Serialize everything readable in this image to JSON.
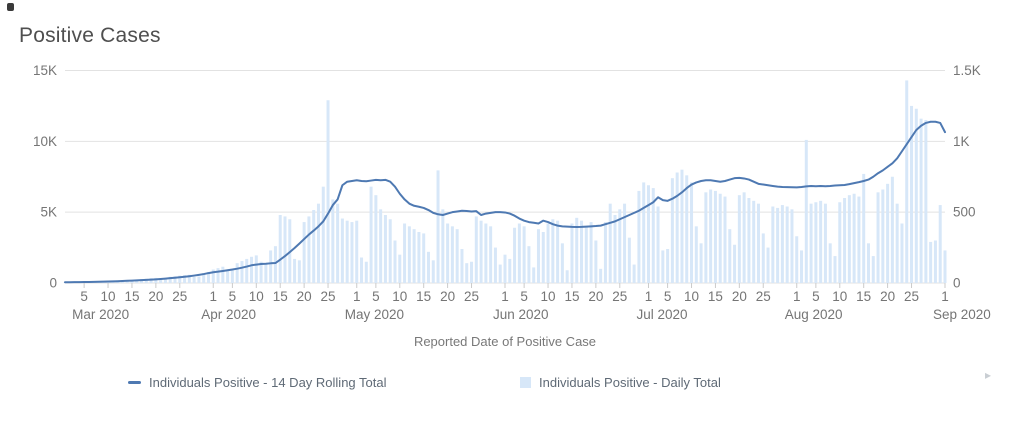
{
  "title": "Positive Cases",
  "x_axis_title": "Reported Date of Positive Case",
  "legend": {
    "items": [
      {
        "label": "Individuals Positive - 14 Day Rolling Total",
        "marker": "line-dash"
      },
      {
        "label": "Individuals Positive - Daily Total",
        "marker": "square"
      }
    ]
  },
  "icons": {
    "expand_marker": "▸"
  },
  "colors": {
    "line": "#4e79b2",
    "bar": "#d7e7f8",
    "grid": "#e2e2e2",
    "tick": "#cbcbcb",
    "axis_text": "#757575",
    "title_text": "#4f4f4f",
    "legend_text": "#5f6a76"
  },
  "chart_data": {
    "type": "line+bar",
    "title": "Positive Cases",
    "xlabel": "Reported Date of Positive Case",
    "x_start_date": "2020-03-01",
    "x_end_date": "2020-09-01",
    "x_interval": "day",
    "grid": true,
    "legend_position": "bottom",
    "axes": {
      "left": {
        "max": 15000,
        "ticks": [
          {
            "v": 0,
            "label": "0"
          },
          {
            "v": 5000,
            "label": "5K"
          },
          {
            "v": 10000,
            "label": "10K"
          },
          {
            "v": 15000,
            "label": "15K"
          }
        ]
      },
      "right": {
        "max": 1500,
        "ticks": [
          {
            "v": 0,
            "label": "0"
          },
          {
            "v": 500,
            "label": "500"
          },
          {
            "v": 1000,
            "label": "1K"
          },
          {
            "v": 1500,
            "label": "1.5K"
          }
        ]
      }
    },
    "months": [
      {
        "label": "Mar 2020",
        "ticks": [
          {
            "i": 4,
            "t": "5"
          },
          {
            "i": 9,
            "t": "10"
          },
          {
            "i": 14,
            "t": "15"
          },
          {
            "i": 19,
            "t": "20"
          },
          {
            "i": 24,
            "t": "25"
          }
        ]
      },
      {
        "label": "Apr 2020",
        "ticks": [
          {
            "i": 31,
            "t": "1"
          },
          {
            "i": 35,
            "t": "5"
          },
          {
            "i": 40,
            "t": "10"
          },
          {
            "i": 45,
            "t": "15"
          },
          {
            "i": 50,
            "t": "20"
          },
          {
            "i": 55,
            "t": "25"
          }
        ]
      },
      {
        "label": "May 2020",
        "ticks": [
          {
            "i": 61,
            "t": "1"
          },
          {
            "i": 65,
            "t": "5"
          },
          {
            "i": 70,
            "t": "10"
          },
          {
            "i": 75,
            "t": "15"
          },
          {
            "i": 80,
            "t": "20"
          },
          {
            "i": 85,
            "t": "25"
          }
        ]
      },
      {
        "label": "Jun 2020",
        "ticks": [
          {
            "i": 92,
            "t": "1"
          },
          {
            "i": 96,
            "t": "5"
          },
          {
            "i": 101,
            "t": "10"
          },
          {
            "i": 106,
            "t": "15"
          },
          {
            "i": 111,
            "t": "20"
          },
          {
            "i": 116,
            "t": "25"
          }
        ]
      },
      {
        "label": "Jul 2020",
        "ticks": [
          {
            "i": 122,
            "t": "1"
          },
          {
            "i": 126,
            "t": "5"
          },
          {
            "i": 131,
            "t": "10"
          },
          {
            "i": 136,
            "t": "15"
          },
          {
            "i": 141,
            "t": "20"
          },
          {
            "i": 146,
            "t": "25"
          }
        ]
      },
      {
        "label": "Aug 2020",
        "ticks": [
          {
            "i": 153,
            "t": "1"
          },
          {
            "i": 157,
            "t": "5"
          },
          {
            "i": 162,
            "t": "10"
          },
          {
            "i": 167,
            "t": "15"
          },
          {
            "i": 172,
            "t": "20"
          },
          {
            "i": 177,
            "t": "25"
          }
        ]
      },
      {
        "label": "Sep 2020",
        "ticks": [
          {
            "i": 184,
            "t": "1"
          }
        ]
      }
    ],
    "series": [
      {
        "name": "Individuals Positive - 14 Day Rolling Total",
        "type": "line",
        "axis": "left",
        "color": "#4e79b2",
        "values": [
          50,
          55,
          60,
          65,
          70,
          75,
          80,
          85,
          95,
          105,
          115,
          125,
          140,
          155,
          170,
          185,
          200,
          220,
          240,
          260,
          285,
          310,
          340,
          370,
          405,
          440,
          480,
          525,
          575,
          630,
          700,
          760,
          800,
          850,
          900,
          950,
          1010,
          1080,
          1160,
          1250,
          1300,
          1340,
          1360,
          1390,
          1410,
          1650,
          1900,
          2180,
          2470,
          2780,
          3100,
          3420,
          3700,
          4000,
          4350,
          4900,
          5500,
          5900,
          6900,
          7150,
          7200,
          7250,
          7200,
          7180,
          7230,
          7280,
          7250,
          7280,
          7150,
          6800,
          6300,
          5900,
          5600,
          5450,
          5380,
          5300,
          5150,
          4950,
          4850,
          4800,
          4900,
          5000,
          5050,
          5100,
          5080,
          5050,
          5070,
          4800,
          4900,
          4950,
          5000,
          5000,
          4980,
          4900,
          4750,
          4550,
          4400,
          4300,
          4250,
          4200,
          4400,
          4300,
          4150,
          4050,
          4000,
          3980,
          3960,
          3950,
          3960,
          3980,
          4000,
          4020,
          4050,
          4150,
          4250,
          4350,
          4500,
          4650,
          4800,
          4950,
          5100,
          5300,
          5500,
          5700,
          6050,
          5850,
          5800,
          5950,
          6150,
          6400,
          6700,
          6950,
          7100,
          7200,
          7250,
          7250,
          7200,
          7150,
          7200,
          7300,
          7400,
          7420,
          7380,
          7300,
          7150,
          7000,
          6950,
          6900,
          6850,
          6800,
          6780,
          6770,
          6760,
          6750,
          6780,
          6820,
          6850,
          6830,
          6850,
          6830,
          6850,
          6880,
          6900,
          6920,
          6980,
          7050,
          7120,
          7200,
          7300,
          7500,
          7750,
          7950,
          8200,
          8450,
          8800,
          9300,
          9800,
          10300,
          10800,
          11100,
          11300,
          11380,
          11380,
          11300,
          10650
        ]
      },
      {
        "name": "Individuals Positive - Daily Total",
        "type": "bar",
        "axis": "right",
        "color": "#d7e7f8",
        "values": [
          3,
          4,
          5,
          6,
          8,
          9,
          7,
          8,
          12,
          14,
          16,
          18,
          20,
          15,
          16,
          24,
          28,
          30,
          34,
          36,
          26,
          28,
          44,
          48,
          52,
          56,
          58,
          44,
          46,
          70,
          78,
          95,
          105,
          115,
          85,
          90,
          140,
          155,
          170,
          185,
          195,
          150,
          140,
          230,
          260,
          480,
          470,
          450,
          170,
          160,
          430,
          470,
          515,
          560,
          680,
          1290,
          590,
          560,
          455,
          440,
          430,
          440,
          180,
          150,
          680,
          620,
          520,
          480,
          450,
          300,
          200,
          420,
          400,
          380,
          360,
          350,
          220,
          160,
          795,
          520,
          420,
          400,
          380,
          240,
          140,
          150,
          470,
          440,
          420,
          400,
          250,
          130,
          200,
          170,
          390,
          420,
          400,
          260,
          110,
          380,
          360,
          420,
          450,
          440,
          280,
          90,
          420,
          460,
          440,
          400,
          430,
          300,
          100,
          430,
          560,
          480,
          520,
          560,
          320,
          130,
          650,
          710,
          690,
          670,
          540,
          230,
          240,
          740,
          780,
          800,
          760,
          710,
          400,
          280,
          640,
          660,
          650,
          630,
          610,
          380,
          270,
          620,
          640,
          600,
          580,
          560,
          350,
          250,
          540,
          530,
          550,
          540,
          520,
          330,
          230,
          1010,
          560,
          570,
          580,
          560,
          280,
          190,
          570,
          600,
          620,
          630,
          610,
          770,
          280,
          190,
          640,
          660,
          700,
          750,
          560,
          420,
          1430,
          1250,
          1230,
          1160,
          1150,
          290,
          300,
          550,
          230
        ]
      }
    ]
  }
}
